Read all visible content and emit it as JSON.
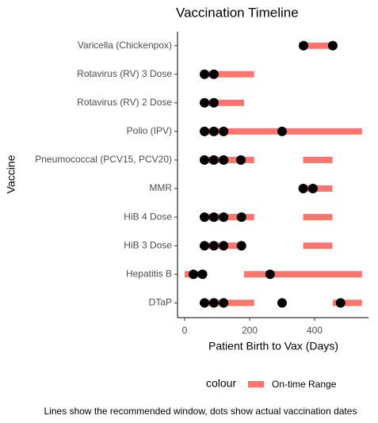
{
  "chart_data": {
    "type": "range-dot",
    "title": "Vaccination Timeline",
    "x_label": "Patient Birth to Vax (Days)",
    "y_label": "Vaccine",
    "legend_title": "colour",
    "caption": "Lines show the recommended window, dots show actual vaccination dates",
    "categories": [
      "DTaP",
      "Hepatitis B",
      "HiB 3 Dose",
      "HiB 4 Dose",
      "MMR",
      "Pneumococcal (PCV15, PCV20)",
      "Polio (IPV)",
      "Rotavirus (RV) 2 Dose",
      "Rotavirus (RV) 3 Dose",
      "Varicella (Chickenpox)"
    ],
    "series": [
      {
        "name": "On-time Range",
        "color": "#f8766d",
        "ranges": [
          [
            [
              61,
              214
            ],
            [
              456,
              546
            ]
          ],
          [
            [
              0,
              60
            ],
            [
              183,
              546
            ]
          ],
          [
            [
              61,
              183
            ],
            [
              365,
              455
            ]
          ],
          [
            [
              61,
              214
            ],
            [
              365,
              455
            ]
          ],
          [
            [
              365,
              455
            ]
          ],
          [
            [
              61,
              214
            ],
            [
              365,
              455
            ]
          ],
          [
            [
              61,
              546
            ]
          ],
          [
            [
              61,
              183
            ]
          ],
          [
            [
              61,
              214
            ]
          ],
          [
            [
              365,
              455
            ]
          ]
        ]
      }
    ],
    "dots": {
      "color": "#000000",
      "values": [
        [
          61,
          90,
          120,
          300,
          480
        ],
        [
          27,
          55,
          263
        ],
        [
          61,
          90,
          120,
          175
        ],
        [
          61,
          90,
          120,
          175
        ],
        [
          365,
          395
        ],
        [
          61,
          90,
          120,
          173
        ],
        [
          61,
          90,
          120,
          300
        ],
        [
          61,
          90
        ],
        [
          61,
          90
        ],
        [
          366,
          456
        ]
      ]
    },
    "xlim": [
      -22,
      566
    ],
    "xticks": [
      0,
      200,
      400
    ]
  }
}
